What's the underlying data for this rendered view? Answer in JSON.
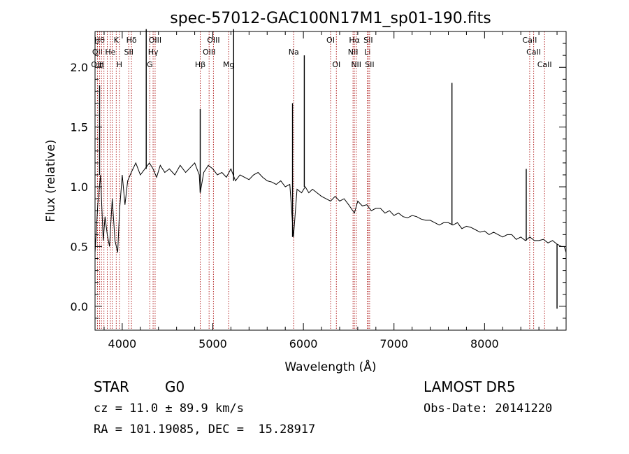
{
  "chart_data": {
    "type": "line",
    "title": "spec-57012-GAC100N17M1_sp01-190.fits",
    "xlabel": "Wavelength (Å)",
    "ylabel": "Flux (relative)",
    "xlim": [
      3700,
      8900
    ],
    "ylim": [
      -0.2,
      2.3
    ],
    "xticks": [
      "4000",
      "5000",
      "6000",
      "7000",
      "8000"
    ],
    "yticks": [
      "0.0",
      "0.5",
      "1.0",
      "1.5",
      "2.0"
    ],
    "grid": false,
    "line_color": "#000000",
    "marker_color": "#b22222",
    "series": [
      {
        "x": [
          3700,
          3730,
          3760,
          3790,
          3810,
          3835,
          3860,
          3890,
          3920,
          3950,
          3970,
          4000,
          4030,
          4060,
          4100,
          4150,
          4200,
          4250,
          4300,
          4340,
          4380,
          4420,
          4470,
          4520,
          4580,
          4640,
          4700,
          4750,
          4800,
          4850,
          4861,
          4900,
          4950,
          5000,
          5050,
          5100,
          5150,
          5200,
          5250,
          5300,
          5350,
          5400,
          5450,
          5500,
          5550,
          5600,
          5650,
          5700,
          5750,
          5800,
          5850,
          5890,
          5930,
          5980,
          6020,
          6060,
          6100,
          6150,
          6200,
          6250,
          6300,
          6350,
          6400,
          6450,
          6500,
          6563,
          6600,
          6650,
          6700,
          6750,
          6800,
          6850,
          6900,
          6950,
          7000,
          7050,
          7100,
          7150,
          7200,
          7250,
          7300,
          7350,
          7400,
          7450,
          7500,
          7550,
          7600,
          7650,
          7700,
          7750,
          7800,
          7850,
          7900,
          7950,
          8000,
          8050,
          8100,
          8150,
          8200,
          8250,
          8300,
          8350,
          8400,
          8450,
          8500,
          8550,
          8600,
          8650,
          8700,
          8750,
          8800,
          8850,
          8880,
          8900
        ],
        "y": [
          0.45,
          0.85,
          1.1,
          0.55,
          0.75,
          0.6,
          0.5,
          0.9,
          0.55,
          0.45,
          0.8,
          1.1,
          0.85,
          1.05,
          1.12,
          1.2,
          1.1,
          1.15,
          1.2,
          1.15,
          1.08,
          1.18,
          1.12,
          1.15,
          1.1,
          1.18,
          1.12,
          1.16,
          1.2,
          1.1,
          0.95,
          1.12,
          1.18,
          1.15,
          1.1,
          1.12,
          1.08,
          1.15,
          1.05,
          1.1,
          1.08,
          1.06,
          1.1,
          1.12,
          1.08,
          1.05,
          1.04,
          1.02,
          1.05,
          1.0,
          1.02,
          0.58,
          0.98,
          0.95,
          1.0,
          0.95,
          0.98,
          0.95,
          0.92,
          0.9,
          0.88,
          0.92,
          0.88,
          0.9,
          0.85,
          0.78,
          0.88,
          0.84,
          0.85,
          0.8,
          0.82,
          0.82,
          0.78,
          0.8,
          0.76,
          0.78,
          0.75,
          0.74,
          0.76,
          0.75,
          0.73,
          0.72,
          0.72,
          0.7,
          0.68,
          0.7,
          0.7,
          0.68,
          0.7,
          0.65,
          0.67,
          0.66,
          0.64,
          0.62,
          0.63,
          0.6,
          0.62,
          0.6,
          0.58,
          0.6,
          0.6,
          0.56,
          0.58,
          0.55,
          0.58,
          0.55,
          0.55,
          0.56,
          0.53,
          0.55,
          0.52,
          0.5,
          0.5,
          0.45
        ]
      }
    ],
    "spikes": [
      {
        "x": 3750,
        "y": 1.85
      },
      {
        "x": 4265,
        "y": 2.32
      },
      {
        "x": 4861,
        "y": 1.65
      },
      {
        "x": 5230,
        "y": 2.32
      },
      {
        "x": 5880,
        "y": 1.7
      },
      {
        "x": 6010,
        "y": 2.1
      },
      {
        "x": 7640,
        "y": 1.87
      },
      {
        "x": 8460,
        "y": 1.15
      },
      {
        "x": 8800,
        "y": -0.02
      }
    ],
    "line_markers": [
      {
        "wave": 3727,
        "labels": [
          "",
          "OII",
          "OIII"
        ]
      },
      {
        "wave": 3750,
        "labels": [
          "Hθ",
          "",
          ""
        ]
      },
      {
        "wave": 3771,
        "labels": [
          "",
          "",
          "η"
        ]
      },
      {
        "wave": 3798,
        "labels": [
          "",
          "",
          ""
        ]
      },
      {
        "wave": 3835,
        "labels": [
          "",
          "",
          ""
        ]
      },
      {
        "wave": 3869,
        "labels": [
          "",
          "He",
          ""
        ]
      },
      {
        "wave": 3889,
        "labels": [
          "",
          "",
          ""
        ]
      },
      {
        "wave": 3934,
        "labels": [
          "K",
          "",
          ""
        ]
      },
      {
        "wave": 3969,
        "labels": [
          "",
          "",
          "H"
        ]
      },
      {
        "wave": 4072,
        "labels": [
          "",
          "SII",
          ""
        ]
      },
      {
        "wave": 4102,
        "labels": [
          "Hδ",
          "",
          ""
        ]
      },
      {
        "wave": 4305,
        "labels": [
          "",
          "",
          "G"
        ]
      },
      {
        "wave": 4341,
        "labels": [
          "",
          "Hγ",
          ""
        ]
      },
      {
        "wave": 4363,
        "labels": [
          "OIII",
          "",
          ""
        ]
      },
      {
        "wave": 4861,
        "labels": [
          "",
          "",
          "Hβ"
        ]
      },
      {
        "wave": 4959,
        "labels": [
          "",
          "OIII",
          ""
        ]
      },
      {
        "wave": 5007,
        "labels": [
          "OIII",
          "",
          ""
        ]
      },
      {
        "wave": 5175,
        "labels": [
          "",
          "",
          "Mg"
        ]
      },
      {
        "wave": 5893,
        "labels": [
          "",
          "Na",
          ""
        ]
      },
      {
        "wave": 6300,
        "labels": [
          "OI",
          "",
          ""
        ]
      },
      {
        "wave": 6364,
        "labels": [
          "",
          "",
          "OI"
        ]
      },
      {
        "wave": 6548,
        "labels": [
          "",
          "NII",
          ""
        ]
      },
      {
        "wave": 6563,
        "labels": [
          "Hα",
          "",
          ""
        ]
      },
      {
        "wave": 6583,
        "labels": [
          "",
          "",
          "NII"
        ]
      },
      {
        "wave": 6707,
        "labels": [
          "",
          "Li",
          ""
        ]
      },
      {
        "wave": 6716,
        "labels": [
          "SII",
          "",
          ""
        ]
      },
      {
        "wave": 6731,
        "labels": [
          "",
          "",
          "SII"
        ]
      },
      {
        "wave": 8498,
        "labels": [
          "CaII",
          "",
          ""
        ]
      },
      {
        "wave": 8542,
        "labels": [
          "",
          "CaII",
          ""
        ]
      },
      {
        "wave": 8662,
        "labels": [
          "",
          "",
          "CaII"
        ]
      }
    ]
  },
  "info": {
    "class": "STAR",
    "subclass": "G0",
    "survey": "LAMOST DR5",
    "cz": "cz = 11.0 ± 89.9 km/s",
    "obs_date": "Obs-Date: 20141220",
    "coords": "RA = 101.19085, DEC =  15.28917"
  }
}
